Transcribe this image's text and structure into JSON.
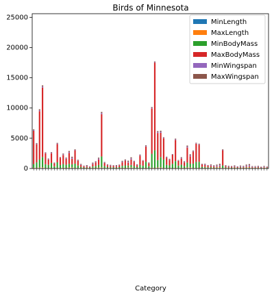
{
  "chart_data": {
    "type": "stacked_bar",
    "title": "Birds of Minnesota",
    "x_label": "Category",
    "categories": [
      null,
      null,
      null,
      null,
      null,
      null,
      null,
      null,
      null,
      null,
      null,
      null,
      null,
      null,
      null,
      null,
      null,
      null,
      null,
      null,
      null,
      null,
      null,
      null,
      null,
      null,
      null,
      null,
      null,
      null,
      null,
      null,
      null,
      null,
      null,
      null,
      null,
      null,
      null,
      null,
      null,
      null,
      null,
      null,
      null,
      null,
      null,
      null,
      null,
      null,
      null,
      null,
      null,
      null,
      null,
      null,
      null,
      null,
      null,
      null,
      null,
      null,
      null,
      null,
      null,
      null,
      null,
      null,
      null,
      null,
      null,
      null,
      null,
      null,
      null,
      null,
      null,
      null,
      null,
      null
    ],
    "ylim": [
      0,
      25600
    ],
    "yticks": [
      0,
      5000,
      10000,
      15000,
      20000,
      25000
    ],
    "legend": "upper right",
    "series": [
      {
        "name": "MinLength",
        "color": "#1f77b4",
        "values": [
          60,
          50,
          80,
          90,
          45,
          40,
          50,
          30,
          55,
          35,
          60,
          50,
          80,
          90,
          45,
          40,
          50,
          30,
          55,
          35,
          60,
          50,
          80,
          90,
          45,
          40,
          50,
          30,
          55,
          35,
          60,
          50,
          80,
          90,
          45,
          40,
          50,
          30,
          55,
          35,
          60,
          50,
          80,
          90,
          45,
          40,
          50,
          30,
          55,
          35,
          60,
          50,
          80,
          90,
          45,
          40,
          50,
          30,
          55,
          35,
          60,
          50,
          80,
          90,
          45,
          40,
          50,
          30,
          55,
          35,
          60,
          50,
          80,
          90,
          45,
          40,
          50,
          30,
          55,
          35
        ]
      },
      {
        "name": "MaxLength",
        "color": "#ff7f0e",
        "values": [
          70,
          60,
          95,
          100,
          55,
          50,
          60,
          35,
          65,
          40,
          70,
          60,
          95,
          100,
          55,
          50,
          60,
          35,
          65,
          40,
          70,
          60,
          95,
          100,
          55,
          50,
          60,
          35,
          65,
          40,
          70,
          60,
          95,
          100,
          55,
          50,
          60,
          35,
          65,
          40,
          70,
          60,
          95,
          100,
          55,
          50,
          60,
          35,
          65,
          40,
          70,
          60,
          95,
          100,
          55,
          50,
          60,
          35,
          65,
          40,
          70,
          60,
          95,
          100,
          55,
          50,
          60,
          35,
          65,
          40,
          70,
          60,
          95,
          100,
          55,
          50,
          60,
          35,
          65,
          40
        ]
      },
      {
        "name": "MinBodyMass",
        "color": "#2ca02c",
        "values": [
          600,
          900,
          1300,
          1700,
          600,
          500,
          800,
          300,
          900,
          500,
          600,
          500,
          600,
          500,
          700,
          400,
          150,
          100,
          80,
          60,
          200,
          300,
          400,
          1800,
          300,
          150,
          100,
          120,
          80,
          150,
          300,
          400,
          300,
          400,
          300,
          150,
          500,
          400,
          1000,
          300,
          2300,
          2900,
          1200,
          1700,
          1400,
          500,
          400,
          700,
          1100,
          400,
          500,
          300,
          800,
          600,
          700,
          1000,
          1000,
          200,
          150,
          120,
          100,
          80,
          50,
          80,
          400,
          100,
          50,
          80,
          60,
          50,
          40,
          45,
          50,
          60,
          40,
          50,
          45,
          35,
          30,
          40
        ]
      },
      {
        "name": "MaxBodyMass",
        "color": "#d62728",
        "values": [
          5500,
          3000,
          8000,
          11500,
          1800,
          900,
          1600,
          500,
          3000,
          1200,
          1500,
          1000,
          1800,
          900,
          2200,
          800,
          300,
          200,
          150,
          100,
          400,
          600,
          900,
          7000,
          500,
          300,
          200,
          250,
          150,
          300,
          600,
          800,
          500,
          900,
          700,
          300,
          1500,
          800,
          2500,
          500,
          7500,
          14500,
          4500,
          4000,
          3500,
          1200,
          900,
          1500,
          3500,
          800,
          1000,
          600,
          2500,
          1200,
          2000,
          3000,
          2800,
          400,
          300,
          250,
          200,
          150,
          100,
          150,
          2500,
          200,
          100,
          150,
          120,
          100,
          80,
          90,
          100,
          120,
          80,
          100,
          90,
          70,
          60,
          80
        ]
      },
      {
        "name": "MinWingspan",
        "color": "#9467bd",
        "values": [
          110,
          90,
          150,
          170,
          80,
          75,
          90,
          55,
          100,
          60,
          110,
          90,
          150,
          170,
          80,
          75,
          90,
          55,
          100,
          60,
          110,
          90,
          150,
          170,
          80,
          75,
          90,
          55,
          100,
          60,
          110,
          90,
          150,
          170,
          80,
          75,
          90,
          55,
          100,
          60,
          110,
          90,
          150,
          170,
          80,
          75,
          90,
          55,
          100,
          60,
          110,
          90,
          150,
          170,
          80,
          75,
          90,
          55,
          100,
          60,
          110,
          90,
          150,
          170,
          80,
          75,
          90,
          55,
          100,
          60,
          110,
          90,
          150,
          170,
          80,
          75,
          90,
          55,
          100,
          60
        ]
      },
      {
        "name": "MaxWingspan",
        "color": "#8c564b",
        "values": [
          130,
          105,
          170,
          190,
          95,
          85,
          105,
          65,
          115,
          70,
          130,
          105,
          170,
          190,
          95,
          85,
          105,
          65,
          115,
          70,
          130,
          105,
          170,
          190,
          95,
          85,
          105,
          65,
          115,
          70,
          130,
          105,
          170,
          190,
          95,
          85,
          105,
          65,
          115,
          70,
          130,
          105,
          170,
          190,
          95,
          85,
          105,
          65,
          115,
          70,
          130,
          105,
          170,
          190,
          95,
          85,
          105,
          65,
          115,
          70,
          130,
          105,
          170,
          190,
          95,
          85,
          105,
          65,
          115,
          70,
          130,
          105,
          170,
          190,
          95,
          85,
          105,
          65,
          115,
          70
        ]
      }
    ]
  }
}
